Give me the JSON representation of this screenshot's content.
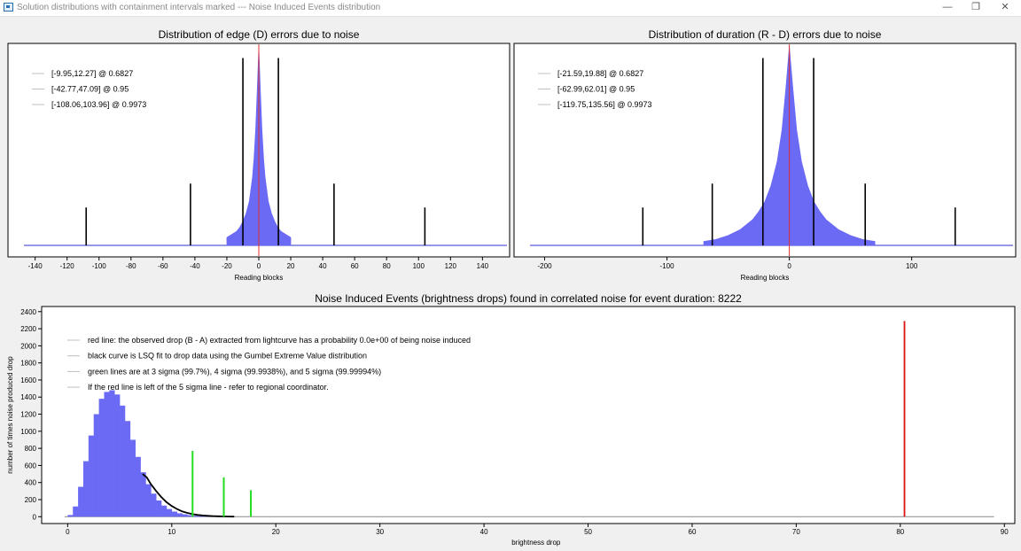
{
  "window": {
    "title": "Solution distributions with containment intervals marked --- Noise Induced Events distribution",
    "minimize_icon": "minimize-icon",
    "restore_icon": "restore-icon",
    "close_icon": "close-icon"
  },
  "chart_data": [
    {
      "id": "edge",
      "type": "bar",
      "title": "Distribution of edge (D) errors due to noise",
      "xlabel": "Reading blocks",
      "ylabel": "",
      "xlim": [
        -157,
        157
      ],
      "xticks": [
        -140,
        -120,
        -100,
        -80,
        -60,
        -40,
        -20,
        0,
        20,
        40,
        60,
        80,
        100,
        120,
        140
      ],
      "histogram": {
        "color": "#6a6af5",
        "x": [
          -20,
          -18,
          -16,
          -14,
          -12,
          -10,
          -8,
          -6,
          -4,
          -3,
          -2,
          -1,
          0,
          1,
          2,
          3,
          4,
          6,
          8,
          10,
          12,
          14,
          16,
          18,
          20
        ],
        "y": [
          0.04,
          0.05,
          0.06,
          0.07,
          0.09,
          0.12,
          0.16,
          0.22,
          0.34,
          0.44,
          0.58,
          0.78,
          1.0,
          0.78,
          0.58,
          0.44,
          0.34,
          0.22,
          0.16,
          0.12,
          0.09,
          0.07,
          0.06,
          0.05,
          0.04
        ]
      },
      "observed_line": {
        "x": 0,
        "color": "#e03030"
      },
      "intervals": [
        {
          "label": "[-9.95,12.27] @ 0.6827",
          "low": -9.95,
          "high": 12.27,
          "height": 0.94
        },
        {
          "label": "[-42.77,47.09] @ 0.95",
          "low": -42.77,
          "high": 47.09,
          "height": 0.31
        },
        {
          "label": "[-108.06,103.96] @ 0.9973",
          "low": -108.06,
          "high": 103.96,
          "height": 0.19
        }
      ]
    },
    {
      "id": "duration",
      "type": "bar",
      "title": "Distribution of duration (R - D) errors due to noise",
      "xlabel": "Reading blocks",
      "ylabel": "",
      "xlim": [
        -225,
        185
      ],
      "xticks": [
        -200,
        -100,
        0,
        100
      ],
      "histogram": {
        "color": "#6a6af5",
        "x": [
          -70,
          -60,
          -50,
          -40,
          -30,
          -25,
          -20,
          -15,
          -10,
          -6,
          -3,
          0,
          3,
          6,
          10,
          15,
          20,
          25,
          30,
          40,
          50,
          60,
          70
        ],
        "y": [
          0.02,
          0.03,
          0.05,
          0.08,
          0.13,
          0.17,
          0.22,
          0.3,
          0.42,
          0.58,
          0.78,
          1.0,
          0.78,
          0.58,
          0.42,
          0.3,
          0.22,
          0.17,
          0.13,
          0.08,
          0.05,
          0.03,
          0.02
        ]
      },
      "observed_line": {
        "x": 0,
        "color": "#e03030"
      },
      "intervals": [
        {
          "label": "[-21.59,19.88] @ 0.6827",
          "low": -21.59,
          "high": 19.88,
          "height": 0.94
        },
        {
          "label": "[-62.99,62.01] @ 0.95",
          "low": -62.99,
          "high": 62.01,
          "height": 0.31
        },
        {
          "label": "[-119.75,135.56] @ 0.9973",
          "low": -119.75,
          "high": 135.56,
          "height": 0.19
        }
      ]
    },
    {
      "id": "noise-events",
      "type": "bar",
      "title": "Noise Induced Events (brightness drops) found in correlated noise for event duration: 8222",
      "xlabel": "brightness drop",
      "ylabel": "number of times noise produced drop",
      "xlim": [
        -2.5,
        91
      ],
      "ylim": [
        -80,
        2460
      ],
      "xticks": [
        0,
        10,
        20,
        30,
        40,
        50,
        60,
        70,
        80,
        90
      ],
      "yticks": [
        0,
        200,
        400,
        600,
        800,
        1000,
        1200,
        1400,
        1600,
        1800,
        2000,
        2200,
        2400
      ],
      "histogram": {
        "color": "#6a6af5",
        "x": [
          0.5,
          1.0,
          1.5,
          2.0,
          2.5,
          3.0,
          3.5,
          4.0,
          4.5,
          5.0,
          5.5,
          6.0,
          6.5,
          7.0,
          7.5,
          8.0,
          8.5,
          9.0,
          9.5,
          10.0,
          10.5,
          11.0,
          11.5,
          12.0,
          12.5,
          13.0,
          13.5,
          14.0,
          14.5,
          15.0,
          15.5,
          16.0
        ],
        "y": [
          20,
          120,
          350,
          650,
          950,
          1200,
          1380,
          1460,
          1480,
          1430,
          1300,
          1120,
          900,
          700,
          520,
          380,
          270,
          190,
          130,
          90,
          60,
          40,
          28,
          18,
          12,
          8,
          5,
          3,
          2,
          1,
          1,
          0
        ]
      },
      "fit_curve": {
        "color": "#000000",
        "x": [
          7.2,
          7.6,
          8.0,
          8.5,
          9.0,
          9.5,
          10.0,
          10.5,
          11.0,
          11.5,
          12.0,
          12.5,
          13.0,
          13.5,
          14.0,
          14.5,
          15.0,
          15.5,
          16.0
        ],
        "y": [
          500,
          460,
          380,
          300,
          230,
          170,
          125,
          90,
          62,
          44,
          30,
          21,
          14,
          10,
          7,
          5,
          3,
          2,
          1
        ]
      },
      "observed_line": {
        "x": 80.4,
        "value": 2290,
        "color": "#dd1111"
      },
      "sigma_lines": [
        {
          "x": 12.0,
          "value": 770,
          "color": "#22dd22"
        },
        {
          "x": 15.0,
          "value": 460,
          "color": "#22dd22"
        },
        {
          "x": 17.6,
          "value": 310,
          "color": "#22dd22"
        }
      ],
      "baseline_x_max": 89,
      "legend": [
        "red line: the observed drop (B - A) extracted from lightcurve has a probability 0.0e+00 of being noise induced",
        "black curve is LSQ fit to drop data using the Gumbel Extreme Value distribution",
        "green lines are at 3 sigma (99.7%), 4 sigma (99.9938%), and 5 sigma (99.99994%)",
        "If the red line is left of the 5 sigma line - refer to regional coordinator."
      ]
    }
  ]
}
